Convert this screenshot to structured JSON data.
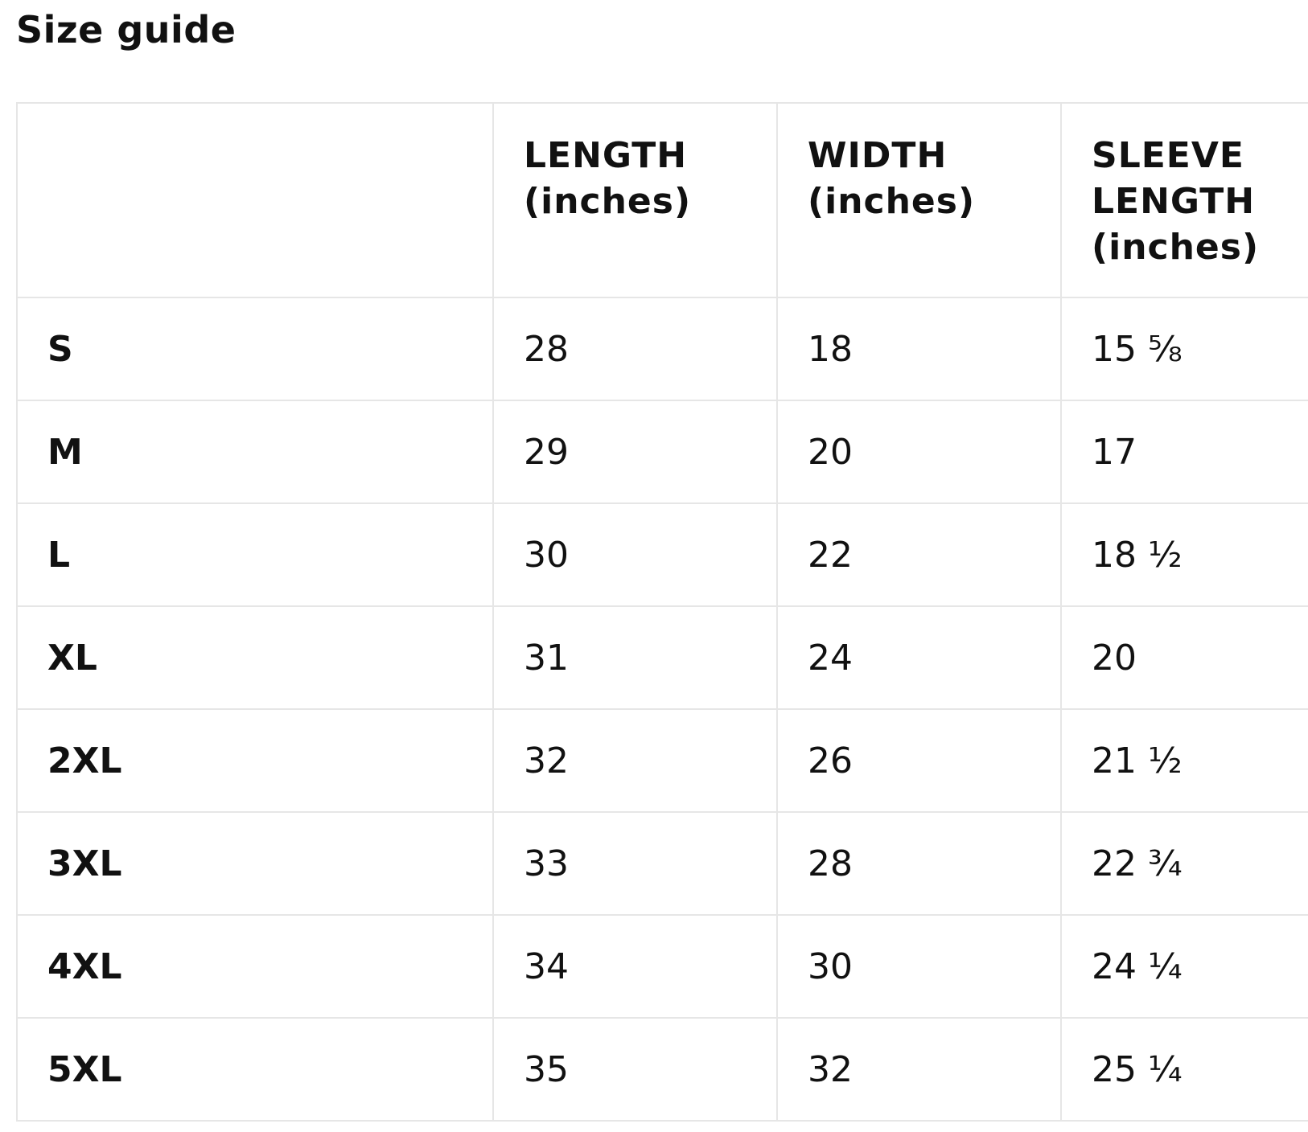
{
  "title": "Size guide",
  "table": {
    "headers": [
      "",
      "LENGTH (inches)",
      "WIDTH (inches)",
      "SLEEVE LENGTH (inches)"
    ],
    "rows": [
      {
        "size": "S",
        "length": "28",
        "width": "18",
        "sleeve": "15 ⅝"
      },
      {
        "size": "M",
        "length": "29",
        "width": "20",
        "sleeve": "17"
      },
      {
        "size": "L",
        "length": "30",
        "width": "22",
        "sleeve": "18 ½"
      },
      {
        "size": "XL",
        "length": "31",
        "width": "24",
        "sleeve": "20"
      },
      {
        "size": "2XL",
        "length": "32",
        "width": "26",
        "sleeve": "21 ½"
      },
      {
        "size": "3XL",
        "length": "33",
        "width": "28",
        "sleeve": "22 ¾"
      },
      {
        "size": "4XL",
        "length": "34",
        "width": "30",
        "sleeve": "24 ¼"
      },
      {
        "size": "5XL",
        "length": "35",
        "width": "32",
        "sleeve": "25 ¼"
      }
    ]
  }
}
